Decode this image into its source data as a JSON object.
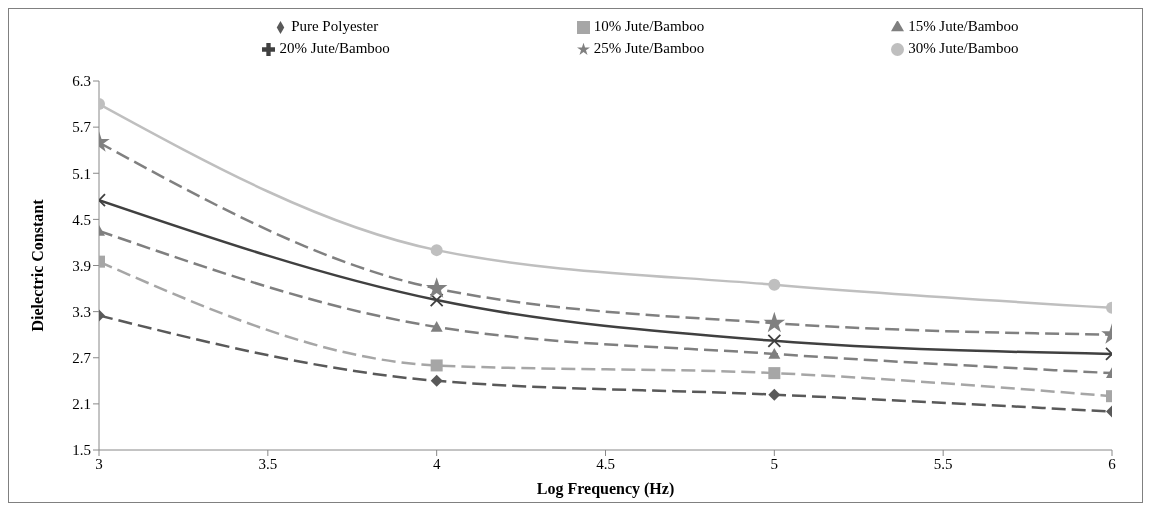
{
  "chart_data": {
    "type": "line",
    "xlabel": "Log Frequency (Hz)",
    "ylabel": "Dielectric Constant",
    "x": [
      3,
      4,
      5,
      6
    ],
    "series": [
      {
        "name": "Pure Polyester",
        "color": "#595959",
        "marker": "diamond",
        "line_style": "dashed",
        "values": [
          3.25,
          2.4,
          2.22,
          2.0
        ]
      },
      {
        "name": "10% Jute/Bamboo",
        "color": "#a6a6a6",
        "marker": "square",
        "line_style": "dashed",
        "values": [
          3.95,
          2.6,
          2.5,
          2.2
        ]
      },
      {
        "name": "15% Jute/Bamboo",
        "color": "#7f7f7f",
        "marker": "triangle",
        "line_style": "dashed",
        "values": [
          4.35,
          3.1,
          2.75,
          2.5
        ]
      },
      {
        "name": "20% Jute/Bamboo",
        "color": "#404040",
        "marker": "cross",
        "line_style": "solid",
        "values": [
          4.75,
          3.45,
          2.92,
          2.75
        ]
      },
      {
        "name": "25% Jute/Bamboo",
        "color": "#808080",
        "marker": "star",
        "line_style": "dashed",
        "values": [
          5.5,
          3.6,
          3.15,
          3.0
        ]
      },
      {
        "name": "30% Jute/Bamboo",
        "color": "#bfbfbf",
        "marker": "circle",
        "line_style": "solid",
        "values": [
          6.0,
          4.1,
          3.65,
          3.35
        ]
      }
    ],
    "xlim": [
      3,
      6
    ],
    "xticks": [
      3,
      3.5,
      4,
      4.5,
      5,
      5.5,
      6
    ],
    "ylim": [
      1.5,
      6.3
    ],
    "yticks": [
      1.5,
      2.1,
      2.7,
      3.3,
      3.9,
      4.5,
      5.1,
      5.7,
      6.3
    ],
    "grid": false,
    "legend": "top"
  }
}
